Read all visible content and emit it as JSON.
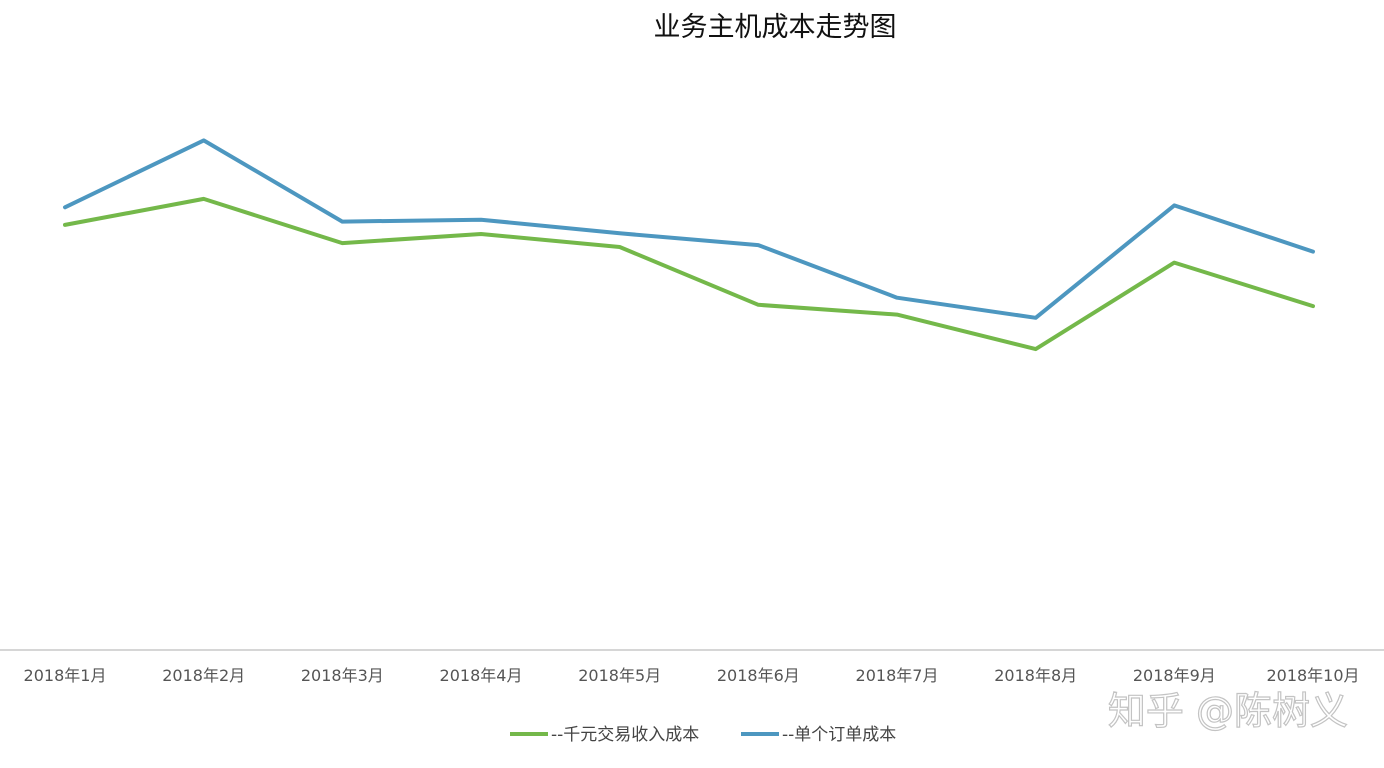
{
  "chart_data": {
    "type": "line",
    "title": "业务主机成本走势图",
    "categories": [
      "2018年1月",
      "2018年2月",
      "2018年3月",
      "2018年4月",
      "2018年5月",
      "2018年6月",
      "2018年7月",
      "2018年8月",
      "2018年9月",
      "2018年10月"
    ],
    "series": [
      {
        "name": "--千元交易收入成本",
        "color": "#74b84a",
        "values": [
          0.654,
          0.694,
          0.626,
          0.64,
          0.62,
          0.531,
          0.516,
          0.463,
          0.596,
          0.529
        ]
      },
      {
        "name": "--单个订单成本",
        "color": "#4d97c0",
        "values": [
          0.681,
          0.784,
          0.659,
          0.662,
          0.641,
          0.623,
          0.542,
          0.511,
          0.684,
          0.613
        ]
      }
    ],
    "ylim": [
      0,
      1
    ],
    "xlabel": "",
    "ylabel": "",
    "grid": false,
    "legend_position": "bottom-center"
  },
  "watermark": {
    "text": "知乎 @陈树义"
  }
}
